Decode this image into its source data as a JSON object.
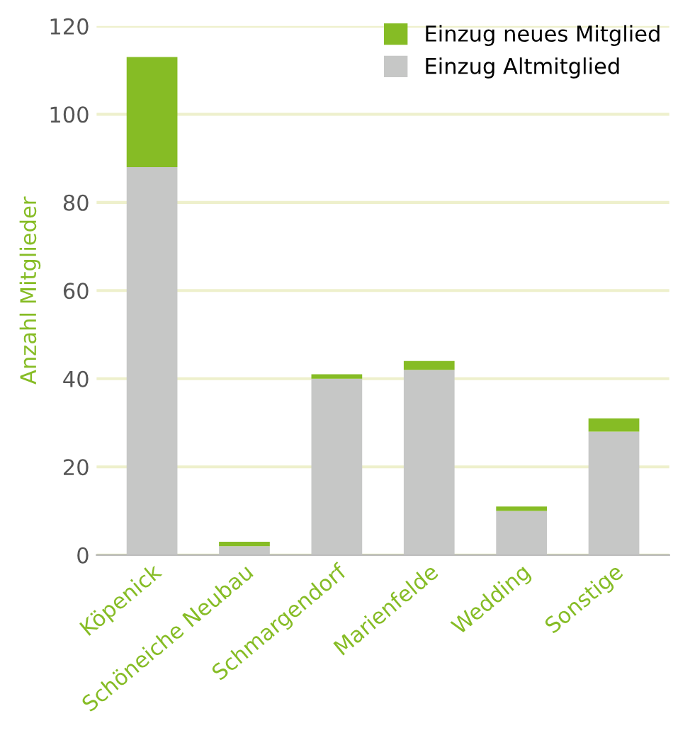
{
  "chart_data": {
    "type": "bar",
    "stacked": true,
    "ylabel": "Anzahl Mitglieder",
    "categories": [
      "Köpenick",
      "Schöneiche Neubau",
      "Schmargendorf",
      "Marienfelde",
      "Wedding",
      "Sonstige"
    ],
    "series": [
      {
        "name": "Einzug Altmitglied",
        "color": "#c6c7c6",
        "values": [
          88,
          2,
          40,
          42,
          10,
          28
        ]
      },
      {
        "name": "Einzug neues Mitglied",
        "color": "#86bc25",
        "values": [
          25,
          1,
          1,
          2,
          1,
          3
        ]
      }
    ],
    "ylim": [
      0,
      120
    ],
    "yticks": [
      0,
      20,
      40,
      60,
      80,
      100,
      120
    ],
    "grid": "y",
    "legend": "top right"
  }
}
